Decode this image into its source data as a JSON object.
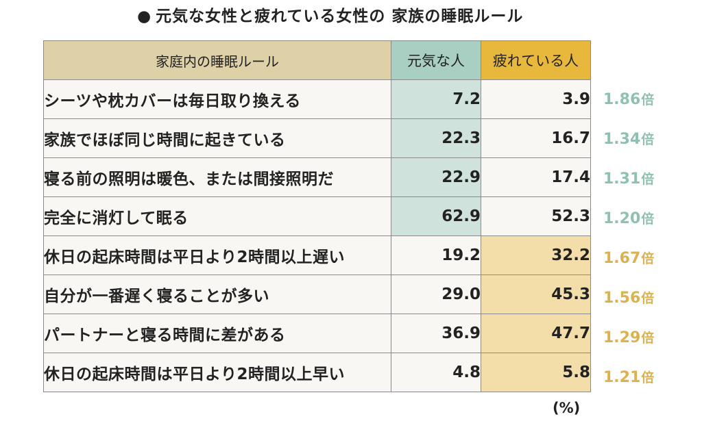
{
  "colors": {
    "header_rule_bg": "#dfd1a7",
    "header_genki_bg": "#a8cfc2",
    "header_tsukare_bg": "#e8b83c",
    "highlight_genki": "#cfe3dc",
    "highlight_tsukare": "#f3deaa",
    "ratio_genki": "#8fc1b1",
    "ratio_tsukare": "#dcb24c",
    "cell_bg": "#f9f7f3"
  },
  "unit_note": "(%)",
  "chart_data": {
    "type": "table",
    "title": "元気な女性と疲れている女性の 家族の睡眠ルール",
    "title_marker": "●",
    "columns": [
      "家庭内の睡眠ルール",
      "元気な人",
      "疲れている人"
    ],
    "ratio_unit": "倍",
    "rows": [
      {
        "rule": "シーツや枕カバーは毎日取り換える",
        "genki": "7.2",
        "tsukare": "3.9",
        "ratio": "1.86",
        "higher": "genki"
      },
      {
        "rule": "家族でほぼ同じ時間に起きている",
        "genki": "22.3",
        "tsukare": "16.7",
        "ratio": "1.34",
        "higher": "genki"
      },
      {
        "rule": "寝る前の照明は暖色、または間接照明だ",
        "genki": "22.9",
        "tsukare": "17.4",
        "ratio": "1.31",
        "higher": "genki"
      },
      {
        "rule": "完全に消灯して眠る",
        "genki": "62.9",
        "tsukare": "52.3",
        "ratio": "1.20",
        "higher": "genki"
      },
      {
        "rule": "休日の起床時間は平日より2時間以上遅い",
        "genki": "19.2",
        "tsukare": "32.2",
        "ratio": "1.67",
        "higher": "tsukare"
      },
      {
        "rule": "自分が一番遅く寝ることが多い",
        "genki": "29.0",
        "tsukare": "45.3",
        "ratio": "1.56",
        "higher": "tsukare"
      },
      {
        "rule": "パートナーと寝る時間に差がある",
        "genki": "36.9",
        "tsukare": "47.7",
        "ratio": "1.29",
        "higher": "tsukare"
      },
      {
        "rule": "休日の起床時間は平日より2時間以上早い",
        "genki": "4.8",
        "tsukare": "5.8",
        "ratio": "1.21",
        "higher": "tsukare"
      }
    ]
  }
}
